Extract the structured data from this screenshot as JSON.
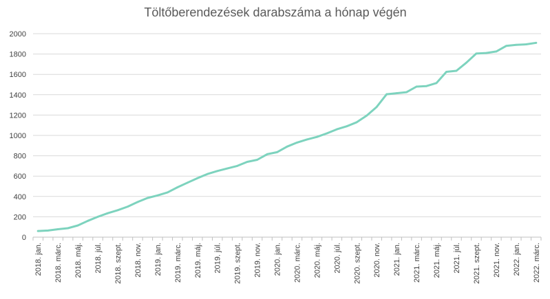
{
  "chart_data": {
    "type": "line",
    "title": "Töltőberendezések darabszáma a hónap végén",
    "xlabel": "",
    "ylabel": "",
    "ylim": [
      0,
      2000
    ],
    "yticks": [
      0,
      200,
      400,
      600,
      800,
      1000,
      1200,
      1400,
      1600,
      1800,
      2000
    ],
    "grid": true,
    "legend": "none",
    "color": "#7dd3be",
    "categories": [
      "2018. jan.",
      "2018. febr.",
      "2018. márc.",
      "2018. ápr.",
      "2018. máj.",
      "2018. jún.",
      "2018. júl.",
      "2018. aug.",
      "2018. szept.",
      "2018. okt.",
      "2018. nov.",
      "2018. dec.",
      "2019. jan.",
      "2019. febr.",
      "2019. márc.",
      "2019. ápr.",
      "2019. máj.",
      "2019. jún.",
      "2019. júl.",
      "2019. aug.",
      "2019. szept.",
      "2019. okt.",
      "2019. nov.",
      "2019. dec.",
      "2020. jan.",
      "2020. febr.",
      "2020. márc.",
      "2020. ápr.",
      "2020. máj.",
      "2020. jún.",
      "2020. júl.",
      "2020. aug.",
      "2020. szept.",
      "2020. okt.",
      "2020. nov.",
      "2020. dec.",
      "2021. jan.",
      "2021. febr.",
      "2021. márc.",
      "2021. ápr.",
      "2021. máj.",
      "2021. jún.",
      "2021. júl.",
      "2021. aug.",
      "2021. szept.",
      "2021. okt.",
      "2021. nov.",
      "2021. dec.",
      "2022. jan.",
      "2022. febr.",
      "2022. márc."
    ],
    "tick_labels": [
      "2018. jan.",
      "2018. márc.",
      "2018. máj.",
      "2018. júl.",
      "2018. szept.",
      "2018. nov.",
      "2019. jan.",
      "2019. márc.",
      "2019. máj.",
      "2019. júl.",
      "2019. szept.",
      "2019. nov.",
      "2020. jan.",
      "2020. márc.",
      "2020. máj.",
      "2020. júl.",
      "2020. szept.",
      "2020. nov.",
      "2021. jan.",
      "2021. márc.",
      "2021. máj.",
      "2021. júl.",
      "2021. szept.",
      "2021. nov.",
      "2022. jan.",
      "2022. márc."
    ],
    "values": [
      60,
      65,
      78,
      88,
      115,
      160,
      200,
      235,
      265,
      300,
      345,
      385,
      410,
      440,
      490,
      535,
      580,
      620,
      650,
      675,
      700,
      740,
      760,
      815,
      835,
      890,
      930,
      960,
      985,
      1020,
      1060,
      1090,
      1130,
      1195,
      1280,
      1405,
      1415,
      1425,
      1480,
      1485,
      1515,
      1625,
      1635,
      1715,
      1805,
      1810,
      1825,
      1880,
      1890,
      1895,
      1910
    ]
  }
}
